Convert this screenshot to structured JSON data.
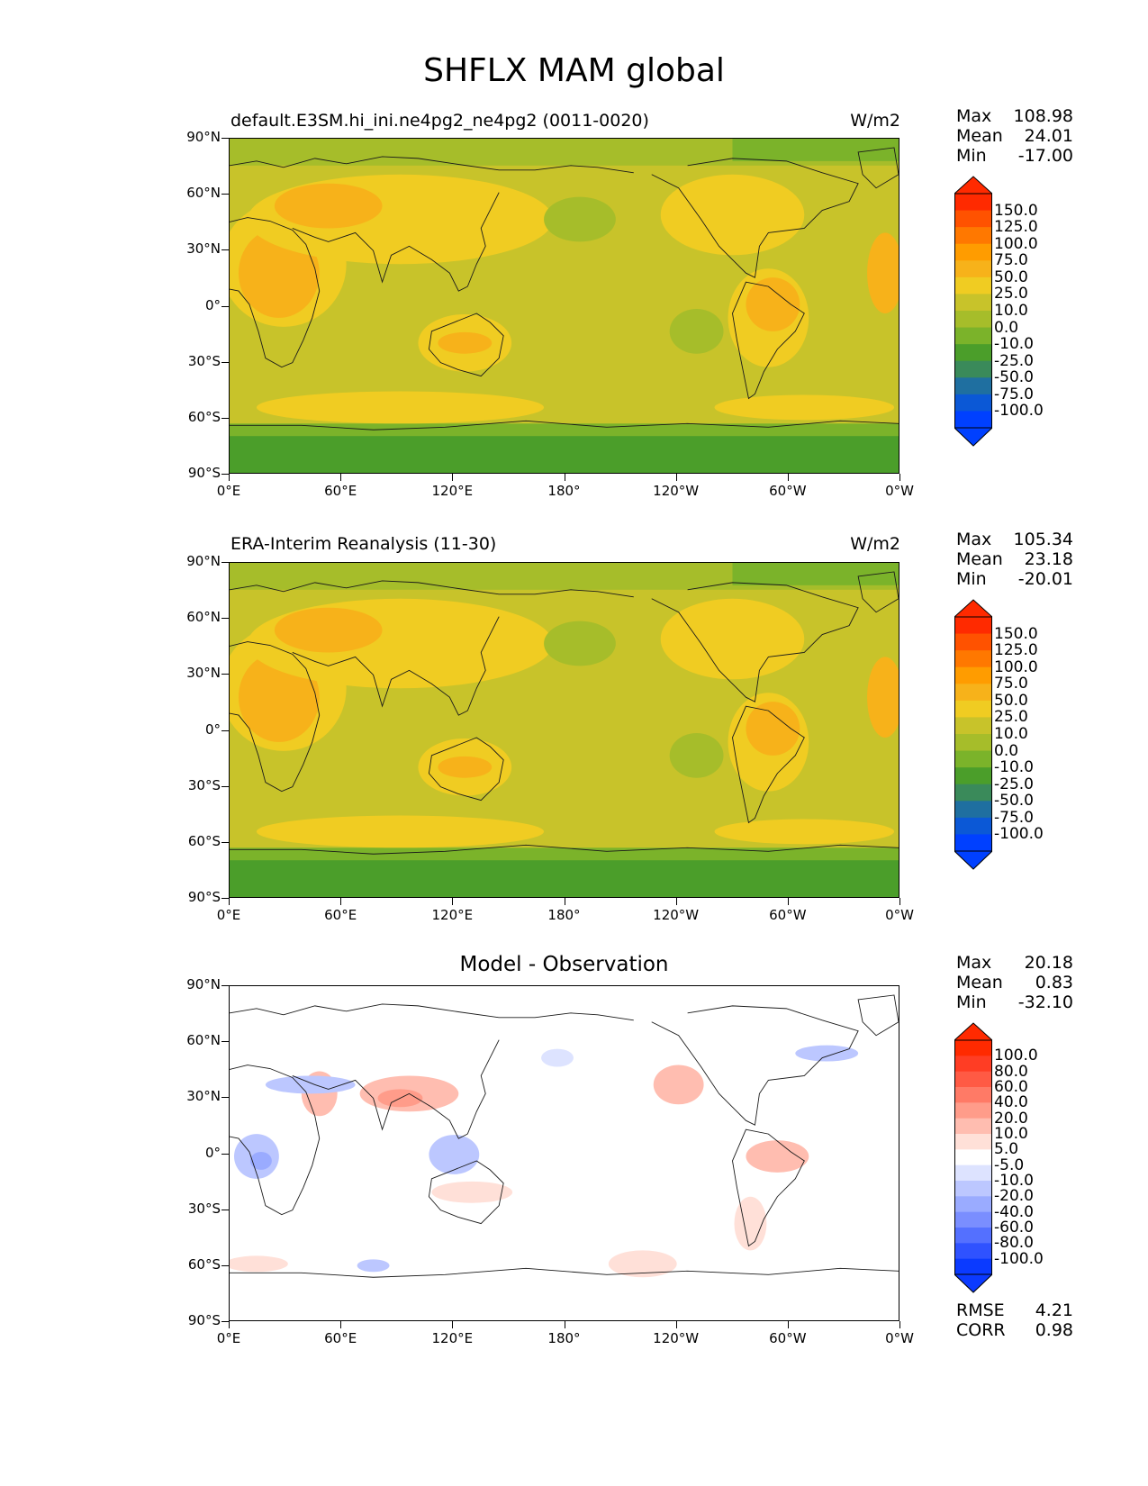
{
  "figure": {
    "title": "SHFLX MAM global"
  },
  "axes": {
    "lat_labels": [
      "90°N",
      "60°N",
      "30°N",
      "0°",
      "30°S",
      "60°S",
      "90°S"
    ],
    "lon_labels": [
      "0°E",
      "60°E",
      "120°E",
      "180°",
      "120°W",
      "60°W",
      "0°W"
    ]
  },
  "panels": [
    {
      "id": "model",
      "title_left": "default.E3SM.hi_ini.ne4pg2_ne4pg2 (0011-0020)",
      "title_right": "W/m2",
      "stats": {
        "max_label": "Max",
        "max": "108.98",
        "mean_label": "Mean",
        "mean": "24.01",
        "min_label": "Min",
        "min": "-17.00"
      },
      "colorbar": {
        "levels": [
          "150.0",
          "125.0",
          "100.0",
          "75.0",
          "50.0",
          "25.0",
          "10.0",
          "0.0",
          "-10.0",
          "-25.0",
          "-50.0",
          "-75.0",
          "-100.0"
        ],
        "colors": [
          "#ff2a00",
          "#ff5200",
          "#ff7800",
          "#ff9c00",
          "#f7b21a",
          "#f0cc22",
          "#c8c32a",
          "#a6bd2a",
          "#7bb32a",
          "#4b9e2a",
          "#3a8a5a",
          "#1f6fa0",
          "#0b58d6",
          "#0040ff"
        ]
      }
    },
    {
      "id": "obs",
      "title_left": "ERA-Interim Reanalysis (11-30)",
      "title_right": "W/m2",
      "stats": {
        "max_label": "Max",
        "max": "105.34",
        "mean_label": "Mean",
        "mean": "23.18",
        "min_label": "Min",
        "min": "-20.01"
      },
      "colorbar": {
        "levels": [
          "150.0",
          "125.0",
          "100.0",
          "75.0",
          "50.0",
          "25.0",
          "10.0",
          "0.0",
          "-10.0",
          "-25.0",
          "-50.0",
          "-75.0",
          "-100.0"
        ],
        "colors": [
          "#ff2a00",
          "#ff5200",
          "#ff7800",
          "#ff9c00",
          "#f7b21a",
          "#f0cc22",
          "#c8c32a",
          "#a6bd2a",
          "#7bb32a",
          "#4b9e2a",
          "#3a8a5a",
          "#1f6fa0",
          "#0b58d6",
          "#0040ff"
        ]
      }
    },
    {
      "id": "diff",
      "title_center": "Model - Observation",
      "stats": {
        "max_label": "Max",
        "max": "20.18",
        "mean_label": "Mean",
        "mean": "0.83",
        "min_label": "Min",
        "min": "-32.10"
      },
      "colorbar": {
        "levels": [
          "100.0",
          "80.0",
          "60.0",
          "40.0",
          "20.0",
          "10.0",
          "5.0",
          "-5.0",
          "-10.0",
          "-20.0",
          "-40.0",
          "-60.0",
          "-80.0",
          "-100.0"
        ],
        "colors": [
          "#ff2a00",
          "#ff3d24",
          "#ff5a44",
          "#ff7a66",
          "#ff9c8a",
          "#ffbdb0",
          "#ffe0d8",
          "#ffffff",
          "#dde3ff",
          "#bcc7ff",
          "#9aabff",
          "#7a8eff",
          "#5470ff",
          "#2f52ff",
          "#0b3aff"
        ]
      },
      "footer": {
        "rmse_label": "RMSE",
        "rmse": "4.21",
        "corr_label": "CORR",
        "corr": "0.98"
      }
    }
  ]
}
